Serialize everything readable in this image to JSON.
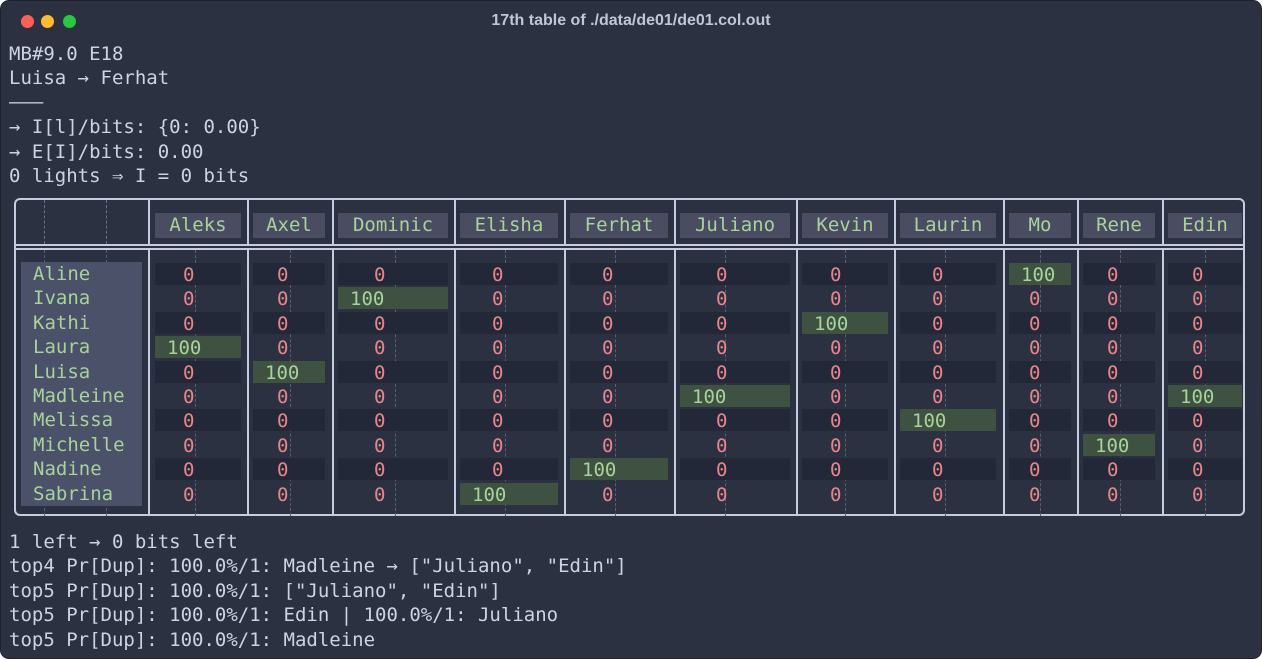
{
  "window": {
    "title": "17th table of ./data/de01/de01.col.out"
  },
  "header_lines": [
    "MB#9.0 E18",
    "Luisa → Ferhat",
    "———",
    "→ I[l]/bits: {0: 0.00}",
    "→ E[I]/bits: 0.00",
    "0 lights ⇒ I = 0 bits"
  ],
  "table": {
    "columns": [
      "Aleks",
      "Axel",
      "Dominic",
      "Elisha",
      "Ferhat",
      "Juliano",
      "Kevin",
      "Laurin",
      "Mo",
      "Rene",
      "Edin"
    ],
    "rows": [
      {
        "name": "Aline",
        "values": [
          "0",
          "0",
          "0",
          "0",
          "0",
          "0",
          "0",
          "0",
          "100",
          "0",
          "0"
        ]
      },
      {
        "name": "Ivana",
        "values": [
          "0",
          "0",
          "100",
          "0",
          "0",
          "0",
          "0",
          "0",
          "0",
          "0",
          "0"
        ]
      },
      {
        "name": "Kathi",
        "values": [
          "0",
          "0",
          "0",
          "0",
          "0",
          "0",
          "100",
          "0",
          "0",
          "0",
          "0"
        ]
      },
      {
        "name": "Laura",
        "values": [
          "100",
          "0",
          "0",
          "0",
          "0",
          "0",
          "0",
          "0",
          "0",
          "0",
          "0"
        ]
      },
      {
        "name": "Luisa",
        "values": [
          "0",
          "100",
          "0",
          "0",
          "0",
          "0",
          "0",
          "0",
          "0",
          "0",
          "0"
        ]
      },
      {
        "name": "Madleine",
        "values": [
          "0",
          "0",
          "0",
          "0",
          "0",
          "100",
          "0",
          "0",
          "0",
          "0",
          "100"
        ]
      },
      {
        "name": "Melissa",
        "values": [
          "0",
          "0",
          "0",
          "0",
          "0",
          "0",
          "0",
          "100",
          "0",
          "0",
          "0"
        ]
      },
      {
        "name": "Michelle",
        "values": [
          "0",
          "0",
          "0",
          "0",
          "0",
          "0",
          "0",
          "0",
          "0",
          "100",
          "0"
        ]
      },
      {
        "name": "Nadine",
        "values": [
          "0",
          "0",
          "0",
          "0",
          "100",
          "0",
          "0",
          "0",
          "0",
          "0",
          "0"
        ]
      },
      {
        "name": "Sabrina",
        "values": [
          "0",
          "0",
          "0",
          "100",
          "0",
          "0",
          "0",
          "0",
          "0",
          "0",
          "0"
        ]
      }
    ]
  },
  "footer_lines": [
    "1 left → 0 bits left",
    "top4 Pr[Dup]: 100.0%/1: Madleine → [\"Juliano\", \"Edin\"]",
    "top5 Pr[Dup]: 100.0%/1: [\"Juliano\", \"Edin\"]",
    "top5 Pr[Dup]: 100.0%/1: Edin | 100.0%/1: Juliano",
    "top5 Pr[Dup]: 100.0%/1: Madleine"
  ],
  "colors": {
    "background": "#2c3142",
    "zero_text": "#e8858a",
    "hit_text": "#a9d29a",
    "hit_bg": "#3f5242"
  }
}
